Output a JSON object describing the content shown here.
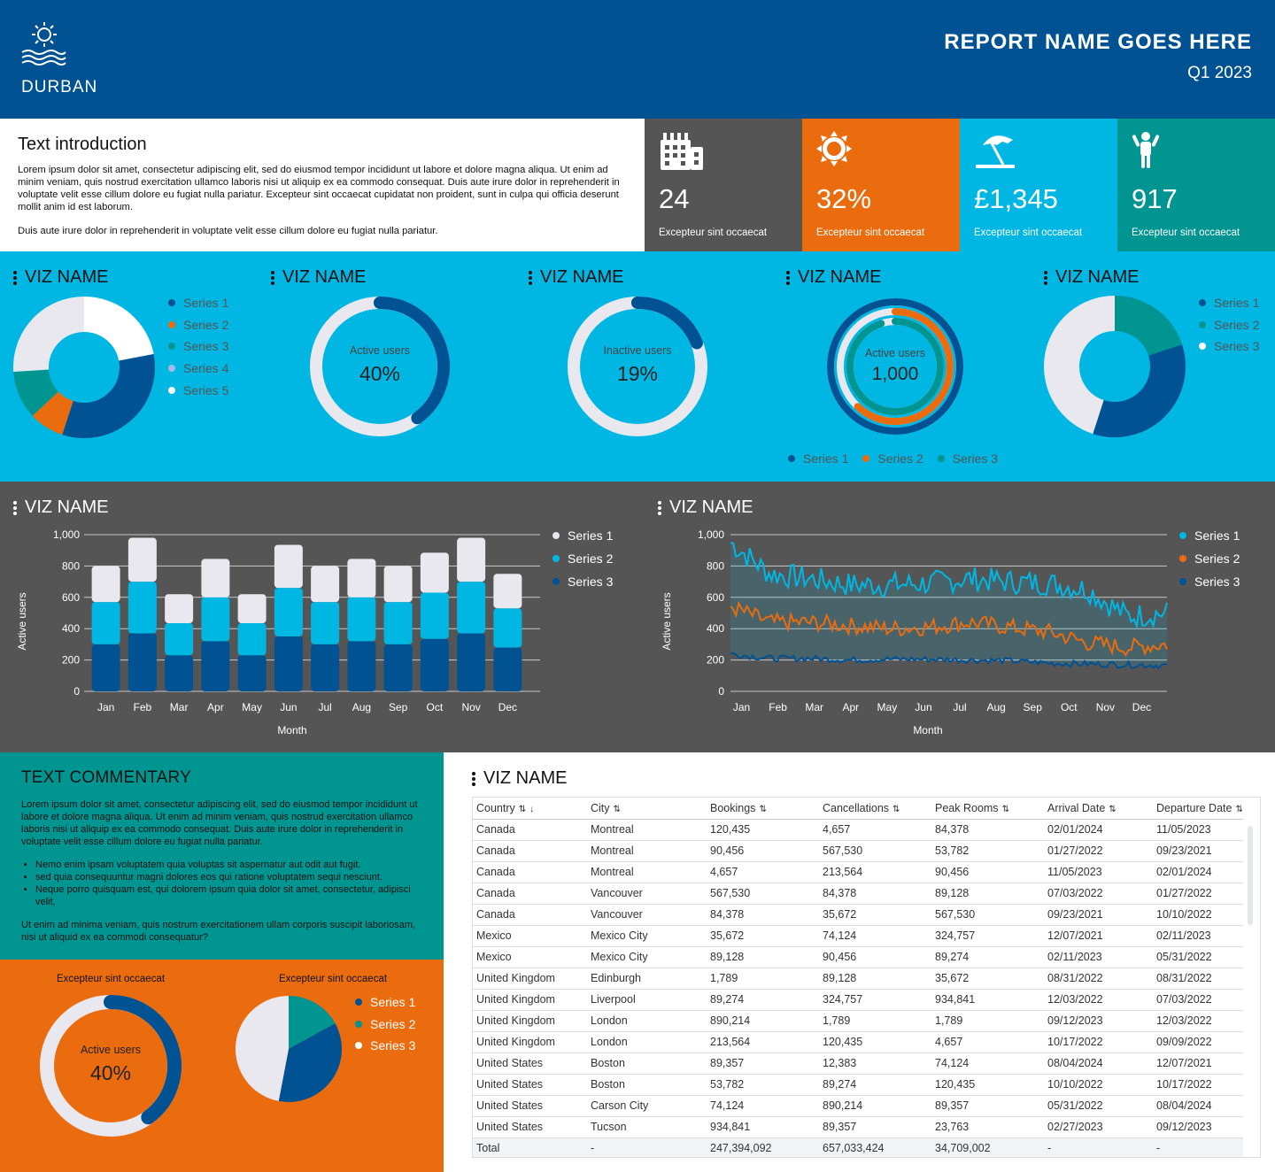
{
  "header": {
    "brand": "DURBAN",
    "title": "REPORT NAME GOES HERE",
    "period": "Q1 2023"
  },
  "intro": {
    "heading": "Text introduction",
    "para1": "Lorem ipsum dolor sit amet, consectetur adipiscing elit, sed do eiusmod tempor incididunt ut labore et dolore magna aliqua. Ut enim ad minim veniam, quis nostrud exercitation ullamco laboris nisi ut aliquip ex ea commodo consequat. Duis aute irure dolor in reprehenderit in voluptate velit esse cillum dolore eu fugiat nulla pariatur. Excepteur sint occaecat cupidatat non proident, sunt in culpa qui officia deserunt mollit anim id est laborum.",
    "para2": "Duis aute irure dolor in reprehenderit in voluptate velit esse cillum dolore eu fugiat nulla pariatur."
  },
  "kpis": [
    {
      "icon": "building-icon",
      "value": "24",
      "label": "Excepteur sint occaecat",
      "color": "#555555"
    },
    {
      "icon": "sun-icon",
      "value": "32%",
      "label": "Excepteur sint occaecat",
      "color": "#EA6C0F"
    },
    {
      "icon": "beach-umbrella-icon",
      "value": "£1,345",
      "label": "Excepteur sint occaecat",
      "color": "#00B7E4"
    },
    {
      "icon": "child-icon",
      "value": "917",
      "label": "Excepteur sint occaecat",
      "color": "#009591"
    }
  ],
  "colors": {
    "navy": "#005293",
    "cyan": "#00B7E4",
    "orange": "#EA6C0F",
    "teal": "#009591",
    "light": "#E8E8EE",
    "gray": "#555555",
    "white": "#FFFFFF"
  },
  "viz_title": "VIZ NAME",
  "donut1_legend": [
    "Series 1",
    "Series 2",
    "Series 3",
    "Series 4",
    "Series 5"
  ],
  "gauge1": {
    "label": "Active users",
    "value": "40%"
  },
  "gauge2": {
    "label": "Inactive users",
    "value": "19%"
  },
  "rings": {
    "label": "Active users",
    "value": "1,000",
    "legend": [
      "Series 1",
      "Series 2",
      "Series 3"
    ]
  },
  "donut2_legend": [
    "Series 1",
    "Series 2",
    "Series 3"
  ],
  "bar_chart": {
    "ylabel": "Active users",
    "xlabel": "Month",
    "legend": [
      "Series 1",
      "Series 2",
      "Series 3"
    ]
  },
  "line_chart": {
    "ylabel": "Active users",
    "xlabel": "Month",
    "legend": [
      "Series 1",
      "Series 2",
      "Series 3"
    ]
  },
  "chart_data": [
    {
      "type": "pie",
      "style": "donut",
      "legend": [
        "Series 1",
        "Series 2",
        "Series 3",
        "Series 4",
        "Series 5"
      ],
      "values": [
        22,
        33,
        8,
        11,
        26
      ],
      "colors": [
        "#FFFFFF",
        "#005293",
        "#EA6C0F",
        "#009591",
        "#E8E8EE"
      ]
    },
    {
      "type": "pie",
      "style": "gauge",
      "value_label": "40%",
      "fraction": 0.4
    },
    {
      "type": "pie",
      "style": "gauge",
      "value_label": "19%",
      "fraction": 0.19
    },
    {
      "type": "pie",
      "style": "rings",
      "series": [
        {
          "name": "Series 1",
          "fraction": 1.0
        },
        {
          "name": "Series 2",
          "fraction": 0.62
        },
        {
          "name": "Series 3",
          "fraction": 0.95
        }
      ]
    },
    {
      "type": "pie",
      "style": "donut",
      "legend": [
        "Series 1",
        "Series 2",
        "Series 3"
      ],
      "values": [
        20,
        35,
        45
      ],
      "colors": [
        "#009591",
        "#005293",
        "#E8E8EE"
      ]
    },
    {
      "type": "bar",
      "stacked": true,
      "categories": [
        "Jan",
        "Feb",
        "Mar",
        "Apr",
        "May",
        "Jun",
        "Jul",
        "Aug",
        "Sep",
        "Oct",
        "Nov",
        "Dec"
      ],
      "series": [
        {
          "name": "Series 3",
          "values": [
            300,
            370,
            230,
            320,
            230,
            350,
            300,
            320,
            300,
            335,
            370,
            280
          ]
        },
        {
          "name": "Series 2",
          "values": [
            270,
            330,
            205,
            280,
            205,
            310,
            270,
            280,
            270,
            295,
            330,
            250
          ]
        },
        {
          "name": "Series 1",
          "values": [
            230,
            280,
            185,
            245,
            185,
            275,
            230,
            245,
            230,
            255,
            280,
            220
          ]
        }
      ],
      "ylim": [
        0,
        1000
      ],
      "yticks": [
        "0",
        "200",
        "400",
        "600",
        "800",
        "1,000"
      ],
      "xlabel": "Month",
      "ylabel": "Active users"
    },
    {
      "type": "line",
      "categories": [
        "Jan",
        "Feb",
        "Mar",
        "Apr",
        "May",
        "Jun",
        "Jul",
        "Aug",
        "Sep",
        "Oct",
        "Nov",
        "Dec"
      ],
      "series": [
        {
          "name": "Series 1",
          "monthly": [
            950,
            750,
            720,
            680,
            680,
            690,
            720,
            700,
            690,
            650,
            480,
            500
          ]
        },
        {
          "name": "Series 2",
          "monthly": [
            540,
            440,
            440,
            420,
            400,
            410,
            440,
            410,
            380,
            310,
            280,
            300
          ]
        },
        {
          "name": "Series 3",
          "monthly": [
            240,
            210,
            210,
            200,
            205,
            205,
            200,
            195,
            180,
            175,
            170,
            165
          ]
        }
      ],
      "ylim": [
        0,
        1000
      ],
      "yticks": [
        "0",
        "200",
        "400",
        "600",
        "800",
        "1,000"
      ],
      "xlabel": "Month",
      "ylabel": "Active users"
    },
    {
      "type": "pie",
      "style": "gauge",
      "value_label": "40%",
      "fraction": 0.4
    },
    {
      "type": "pie",
      "legend": [
        "Series 1",
        "Series 2",
        "Series 3"
      ],
      "values": [
        17,
        36,
        47
      ],
      "colors": [
        "#009591",
        "#005293",
        "#E8E8EE"
      ]
    }
  ],
  "commentary": {
    "heading": "TEXT COMMENTARY",
    "para1": "Lorem ipsum dolor sit amet, consectetur adipiscing elit, sed do eiusmod tempor incididunt ut labore et dolore magna aliqua. Ut enim ad minim veniam, quis nostrud exercitation ullamco laboris nisi ut aliquip ex ea commodo consequat. Duis aute irure dolor in reprehenderit in voluptate velit esse cillum dolore eu fugiat nulla pariatur.",
    "bullets": [
      "Nemo enim ipsam voluptatem quia voluptas sit aspernatur aut odit aut fugit.",
      "sed quia consequuntur magni dolores eos qui ratione voluptatem sequi nesciunt.",
      "Neque porro quisquam est, qui dolorem ipsum quia dolor sit amet, consectetur, adipisci velit,"
    ],
    "para2": "Ut enim ad minima veniam, quis nostrum exercitationem ullam corporis suscipit laboriosam, nisi ut aliquid ex ea commodi consequatur?"
  },
  "orange": {
    "gauge_title": "Excepteur sint occaecat",
    "gauge_label": "Active users",
    "gauge_value": "40%",
    "pie_title": "Excepteur sint occaecat",
    "pie_legend": [
      "Series 1",
      "Series 2",
      "Series 3"
    ]
  },
  "table": {
    "columns": [
      "Country",
      "City",
      "Bookings",
      "Cancellations",
      "Peak Rooms",
      "Arrival Date",
      "Departure Date"
    ],
    "rows": [
      [
        "Canada",
        "Montreal",
        "120,435",
        "4,657",
        "84,378",
        "02/01/2024",
        "11/05/2023"
      ],
      [
        "Canada",
        "Montreal",
        "90,456",
        "567,530",
        "53,782",
        "01/27/2022",
        "09/23/2021"
      ],
      [
        "Canada",
        "Montreal",
        "4,657",
        "213,564",
        "90,456",
        "11/05/2023",
        "02/01/2024"
      ],
      [
        "Canada",
        "Vancouver",
        "567,530",
        "84,378",
        "89,128",
        "07/03/2022",
        "01/27/2022"
      ],
      [
        "Canada",
        "Vancouver",
        "84,378",
        "35,672",
        "567,530",
        "09/23/2021",
        "10/10/2022"
      ],
      [
        "Mexico",
        "Mexico City",
        "35,672",
        "74,124",
        "324,757",
        "12/07/2021",
        "02/11/2023"
      ],
      [
        "Mexico",
        "Mexico City",
        "89,128",
        "90,456",
        "89,274",
        "02/11/2023",
        "05/31/2022"
      ],
      [
        "United Kingdom",
        "Edinburgh",
        "1,789",
        "89,128",
        "35,672",
        "08/31/2022",
        "08/31/2022"
      ],
      [
        "United Kingdom",
        "Liverpool",
        "89,274",
        "324,757",
        "934,841",
        "12/03/2022",
        "07/03/2022"
      ],
      [
        "United Kingdom",
        "London",
        "890,214",
        "1,789",
        "1,789",
        "09/12/2023",
        "12/03/2022"
      ],
      [
        "United Kingdom",
        "London",
        "213,564",
        "120,435",
        "4,657",
        "10/17/2022",
        "09/09/2022"
      ],
      [
        "United States",
        "Boston",
        "89,357",
        "12,383",
        "74,124",
        "08/04/2024",
        "12/07/2021"
      ],
      [
        "United States",
        "Boston",
        "53,782",
        "89,274",
        "120,435",
        "10/10/2022",
        "10/17/2022"
      ],
      [
        "United States",
        "Carson City",
        "74,124",
        "890,214",
        "89,357",
        "05/31/2022",
        "08/04/2024"
      ],
      [
        "United States",
        "Tucson",
        "934,841",
        "89,357",
        "23,763",
        "02/27/2023",
        "09/12/2023"
      ]
    ],
    "total": [
      "Total",
      "-",
      "247,394,092",
      "657,033,424",
      "34,709,002",
      "-",
      "-"
    ]
  }
}
